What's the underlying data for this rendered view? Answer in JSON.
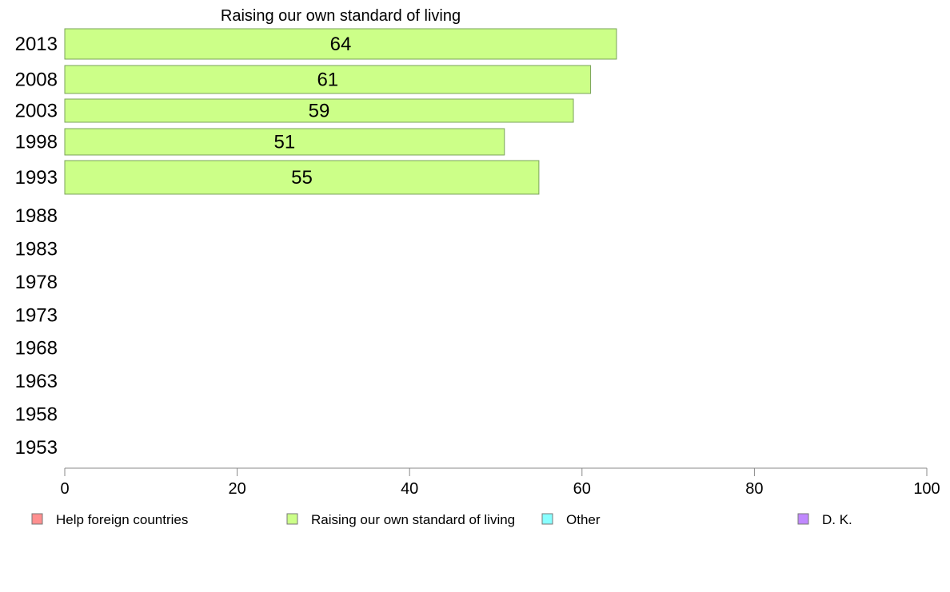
{
  "chart_data": {
    "type": "bar",
    "orientation": "horizontal",
    "title": "Raising our own standard of living",
    "xlabel": "",
    "ylabel": "",
    "xlim": [
      0,
      100
    ],
    "x_ticks": [
      "0",
      "20",
      "40",
      "60",
      "80",
      "100"
    ],
    "categories": [
      "2013",
      "2008",
      "2003",
      "1998",
      "1993",
      "1988",
      "1983",
      "1978",
      "1973",
      "1968",
      "1963",
      "1958",
      "1953"
    ],
    "series": [
      {
        "name": "Raising our own standard of living",
        "color": "#ccff88",
        "values": [
          64,
          61,
          59,
          51,
          55,
          null,
          null,
          null,
          null,
          null,
          null,
          null,
          null
        ],
        "labels": [
          "64",
          "61",
          "59",
          "51",
          "55",
          "",
          "",
          "",
          "",
          "",
          "",
          "",
          ""
        ]
      }
    ],
    "legend": {
      "placement": "bottom",
      "items": [
        {
          "label": "Help foreign countries",
          "color": "#ff8f8f"
        },
        {
          "label": "Raising our own standard of living",
          "color": "#ccff88"
        },
        {
          "label": "Other",
          "color": "#88ffff"
        },
        {
          "label": "D. K.",
          "color": "#c088ff"
        }
      ]
    },
    "grid": false
  }
}
